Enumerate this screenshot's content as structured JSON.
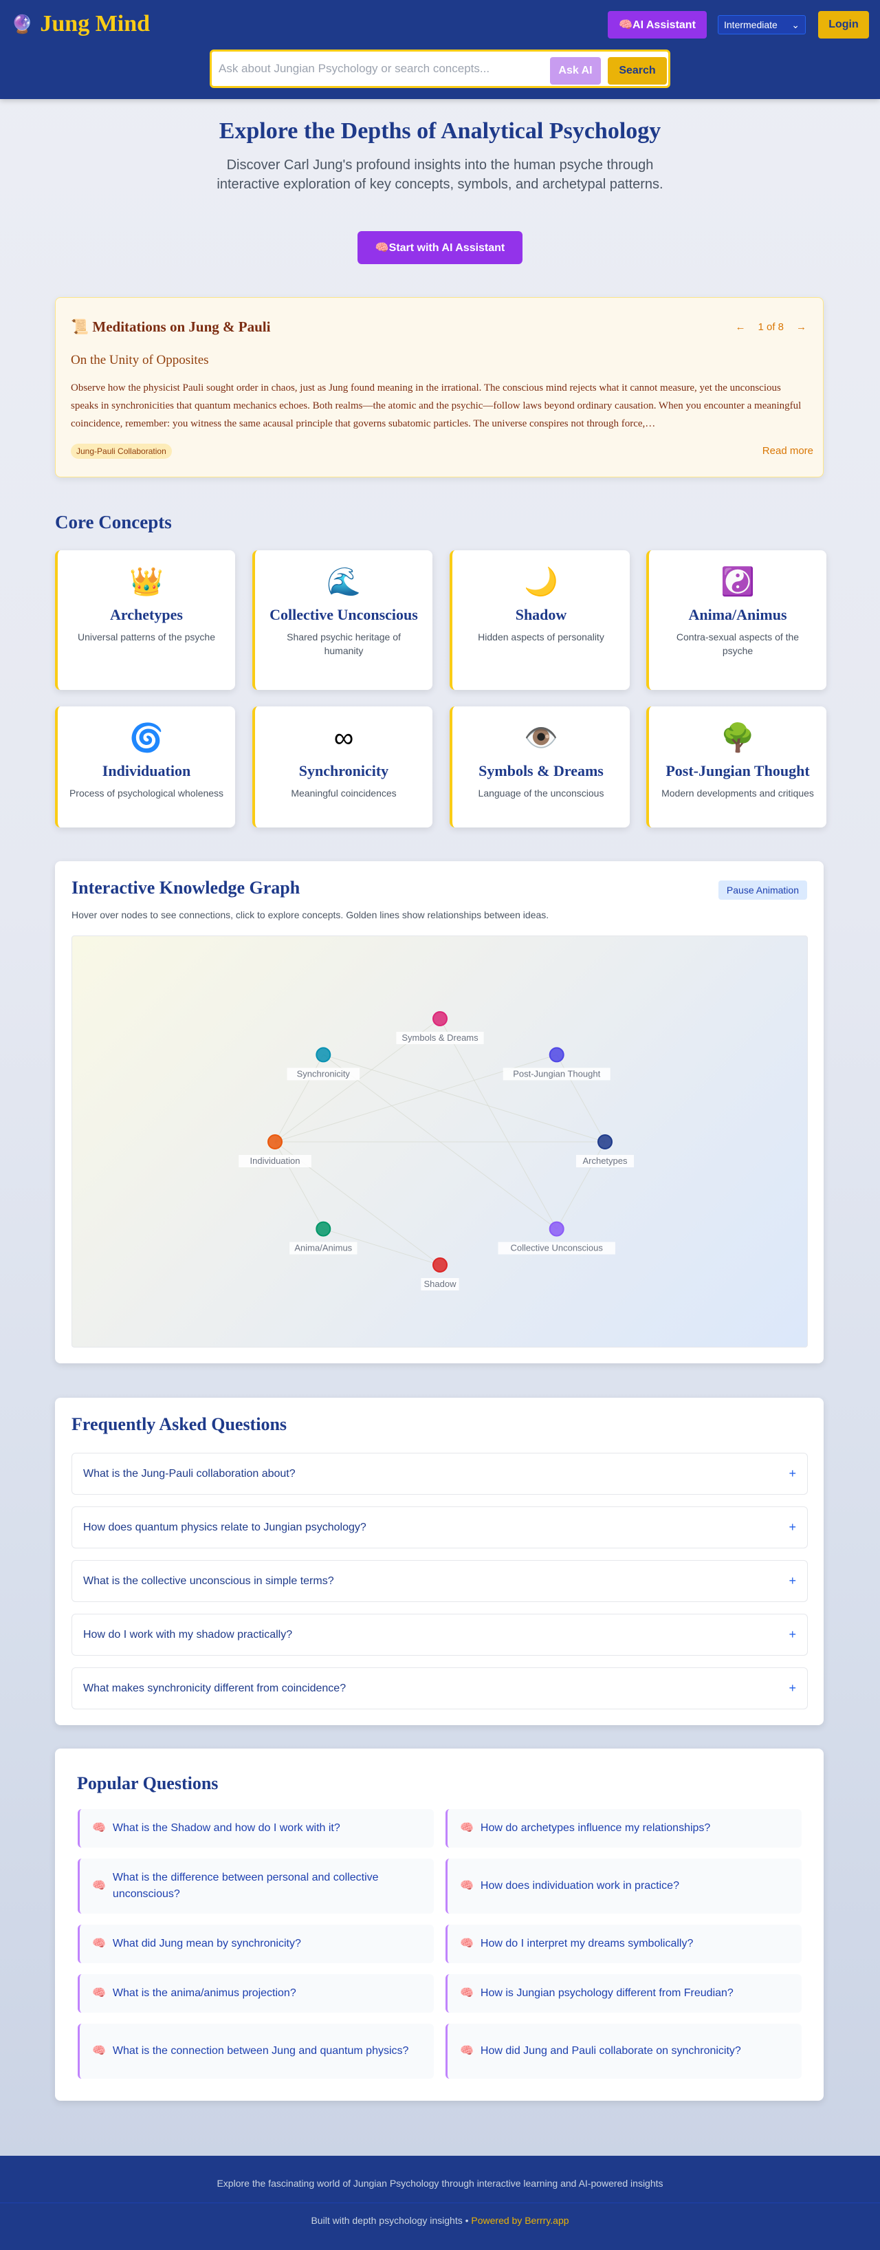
{
  "header": {
    "logo_icon": "🔮",
    "title": "Jung Mind",
    "ai_button": "🧠AI Assistant",
    "level": "Intermediate",
    "login": "Login",
    "search_placeholder": "Ask about Jungian Psychology or search concepts...",
    "ask_ai": "Ask AI",
    "search": "Search"
  },
  "hero": {
    "title": "Explore the Depths of Analytical Psychology",
    "subtitle": "Discover Carl Jung's profound insights into the human psyche through interactive exploration of key concepts, symbols, and archetypal patterns.",
    "cta": "🧠Start with AI Assistant"
  },
  "meditation": {
    "title": "📜 Meditations on Jung & Pauli",
    "prev": "←",
    "counter": "1 of 8",
    "next": "→",
    "subtitle": "On the Unity of Opposites",
    "body": "Observe how the physicist Pauli sought order in chaos, just as Jung found meaning in the irrational. The conscious mind rejects what it cannot measure, yet the unconscious speaks in synchronicities that quantum mechanics echoes. Both realms—the atomic and the psychic—follow laws beyond ordinary causation. When you encounter a meaningful coincidence, remember: you witness the same acausal principle that governs subatomic particles. The universe conspires not through force,…",
    "tag": "Jung-Pauli Collaboration",
    "read_more": "Read more"
  },
  "core": {
    "title": "Core Concepts",
    "cards": [
      {
        "icon": "👑",
        "title": "Archetypes",
        "desc": "Universal patterns of the psyche"
      },
      {
        "icon": "🌊",
        "title": "Collective Unconscious",
        "desc": "Shared psychic heritage of humanity"
      },
      {
        "icon": "🌙",
        "title": "Shadow",
        "desc": "Hidden aspects of personality"
      },
      {
        "icon": "☯️",
        "title": "Anima/Animus",
        "desc": "Contra-sexual aspects of the psyche"
      },
      {
        "icon": "🌀",
        "title": "Individuation",
        "desc": "Process of psychological wholeness"
      },
      {
        "icon": "∞",
        "title": "Synchronicity",
        "desc": "Meaningful coincidences"
      },
      {
        "icon": "👁️",
        "title": "Symbols & Dreams",
        "desc": "Language of the unconscious"
      },
      {
        "icon": "🌳",
        "title": "Post-Jungian Thought",
        "desc": "Modern developments and critiques"
      }
    ]
  },
  "graph": {
    "title": "Interactive Knowledge Graph",
    "pause": "Pause Animation",
    "desc": "Hover over nodes to see connections, click to explore concepts. Golden lines show relationships between ideas.",
    "nodes": [
      {
        "label": "Symbols & Dreams",
        "color": "#db2777"
      },
      {
        "label": "Post-Jungian Thought",
        "color": "#4f46e5"
      },
      {
        "label": "Archetypes",
        "color": "#1e3a8a"
      },
      {
        "label": "Collective Unconscious",
        "color": "#8b5cf6"
      },
      {
        "label": "Shadow",
        "color": "#dc2626"
      },
      {
        "label": "Anima/Animus",
        "color": "#059669"
      },
      {
        "label": "Individuation",
        "color": "#ea580c"
      },
      {
        "label": "Synchronicity",
        "color": "#0891b2"
      }
    ],
    "edges": [
      [
        7,
        6
      ],
      [
        7,
        2
      ],
      [
        7,
        3
      ],
      [
        0,
        3
      ],
      [
        0,
        6
      ],
      [
        1,
        6
      ],
      [
        1,
        2
      ],
      [
        6,
        2
      ],
      [
        6,
        5
      ],
      [
        6,
        4
      ],
      [
        5,
        4
      ],
      [
        2,
        3
      ]
    ]
  },
  "faq": {
    "title": "Frequently Asked Questions",
    "items": [
      "What is the Jung-Pauli collaboration about?",
      "How does quantum physics relate to Jungian psychology?",
      "What is the collective unconscious in simple terms?",
      "How do I work with my shadow practically?",
      "What makes synchronicity different from coincidence?"
    ],
    "expand_icon": "+"
  },
  "popular": {
    "title": "Popular Questions",
    "icon": "🧠",
    "items": [
      "What is the Shadow and how do I work with it?",
      "How do archetypes influence my relationships?",
      "What is the difference between personal and collective unconscious?",
      "How does individuation work in practice?",
      "What did Jung mean by synchronicity?",
      "How do I interpret my dreams symbolically?",
      "What is the anima/animus projection?",
      "How is Jungian psychology different from Freudian?",
      "What is the connection between Jung and quantum physics?",
      "How did Jung and Pauli collaborate on synchronicity?"
    ]
  },
  "footer": {
    "tagline": "Explore the fascinating world of Jungian Psychology through interactive learning and AI-powered insights",
    "built": "Built with depth psychology insights • ",
    "powered": "Powered by Berrry.app"
  }
}
